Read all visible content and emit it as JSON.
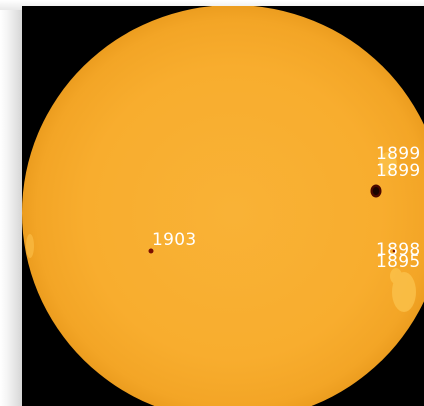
{
  "image": {
    "background_color": "#000000",
    "disk_color": "#f8ad2e",
    "disk_edge_color": "#ec9d1f",
    "sunspot_color": "#7a0f00",
    "label_color": "#ffffff"
  },
  "sunspots": [
    {
      "name": "sunspot-1903",
      "label": "1903"
    },
    {
      "name": "sunspot-1899-top",
      "label": "1899"
    },
    {
      "name": "sunspot-1899-bottom",
      "label": "1899"
    },
    {
      "name": "sunspot-1898",
      "label": "1898"
    },
    {
      "name": "sunspot-1895",
      "label": "1895"
    }
  ]
}
